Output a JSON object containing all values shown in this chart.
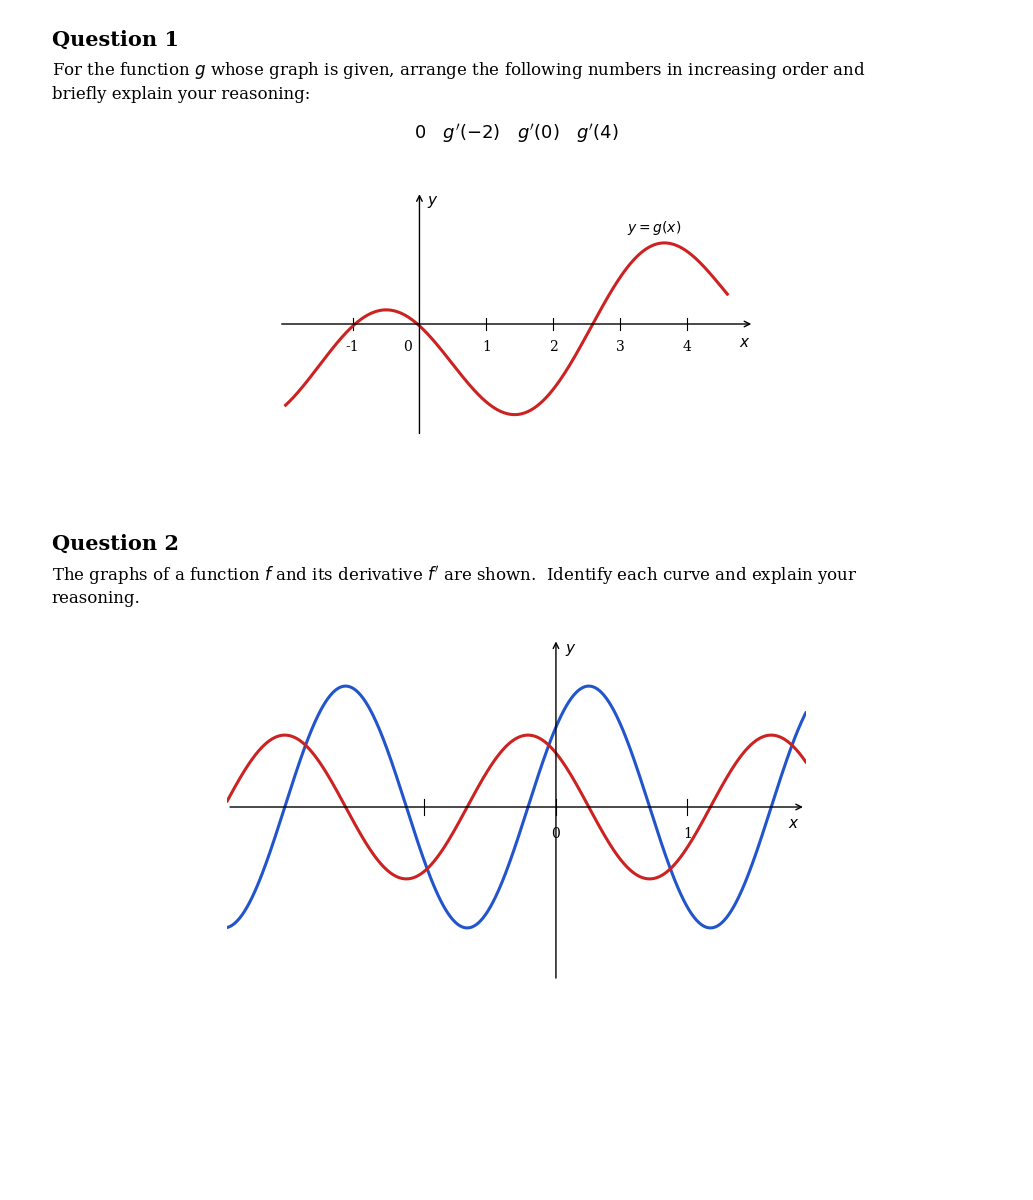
{
  "q1_title": "Question 1",
  "q1_text1": "For the function $g$ whose graph is given, arrange the following numbers in increasing order and",
  "q1_text2": "briefly explain your reasoning:",
  "q1_numbers_text": "$0 \\quad g'(-2) \\quad g'(0) \\quad g'(4)$",
  "q1_curve_color": "#cc2222",
  "q1_label": "$y = g(x)$",
  "q1_xlim": [
    -2.1,
    5.0
  ],
  "q1_ylim": [
    -2.8,
    2.8
  ],
  "q1_xticks": [
    -1,
    1,
    2,
    3,
    4
  ],
  "q2_title": "Question 2",
  "q2_text1": "The graphs of a function $f$ and its derivative $f'$ are shown.  Identify each curve and explain your",
  "q2_text2": "reasoning.",
  "q2_blue_color": "#2255cc",
  "q2_red_color": "#cc2222",
  "q2_xlim": [
    -2.5,
    1.9
  ],
  "q2_ylim": [
    -2.8,
    2.8
  ],
  "q2_period": 1.85,
  "q2_blue_amp": 1.85,
  "q2_red_amp": 1.1,
  "bg_color": "#ffffff",
  "title_fontsize": 15,
  "body_fontsize": 12,
  "numbers_fontsize": 13
}
